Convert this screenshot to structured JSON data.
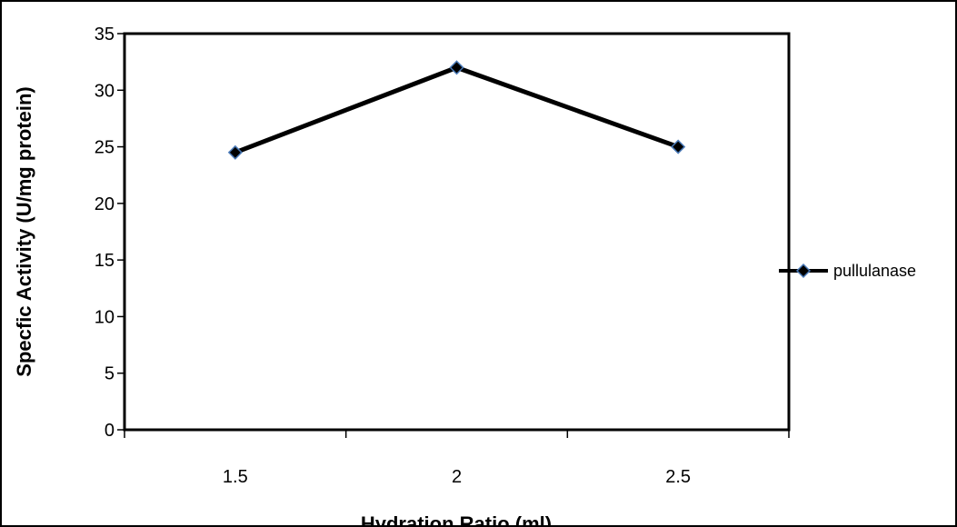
{
  "chart_data": {
    "type": "line",
    "title": "",
    "xlabel": "Hydration Ratio (ml)",
    "ylabel": "Specfic Activity (U/mg protein)",
    "categories": [
      "1.5",
      "2",
      "2.5"
    ],
    "series": [
      {
        "name": "pullulanase",
        "values": [
          24.5,
          32,
          25
        ],
        "color": "#000000",
        "marker": "diamond",
        "marker_edge": "#4a7ab8"
      }
    ],
    "ylim": [
      0,
      35
    ],
    "yticks": [
      "0",
      "5",
      "10",
      "15",
      "20",
      "25",
      "30",
      "35"
    ],
    "grid": false,
    "legend": "right"
  }
}
